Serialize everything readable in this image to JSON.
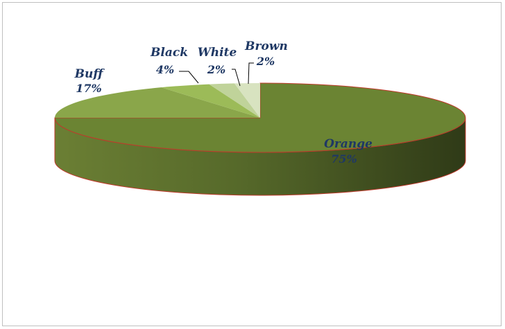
{
  "chart_data": {
    "type": "pie",
    "style": "3d-pie",
    "title": "",
    "legend": "none",
    "slices": [
      {
        "name": "Orange",
        "value": 75,
        "label": "75%",
        "color": "#6b8433"
      },
      {
        "name": "Buff",
        "value": 17,
        "label": "17%",
        "color": "#8aa64a"
      },
      {
        "name": "Black",
        "value": 4,
        "label": "4%",
        "color": "#9cbb58"
      },
      {
        "name": "White",
        "value": 2,
        "label": "2%",
        "color": "#c0d39a"
      },
      {
        "name": "Brown",
        "value": 2,
        "label": "2%",
        "color": "#d8e3c0"
      }
    ],
    "edge_color": "#c0392b"
  }
}
